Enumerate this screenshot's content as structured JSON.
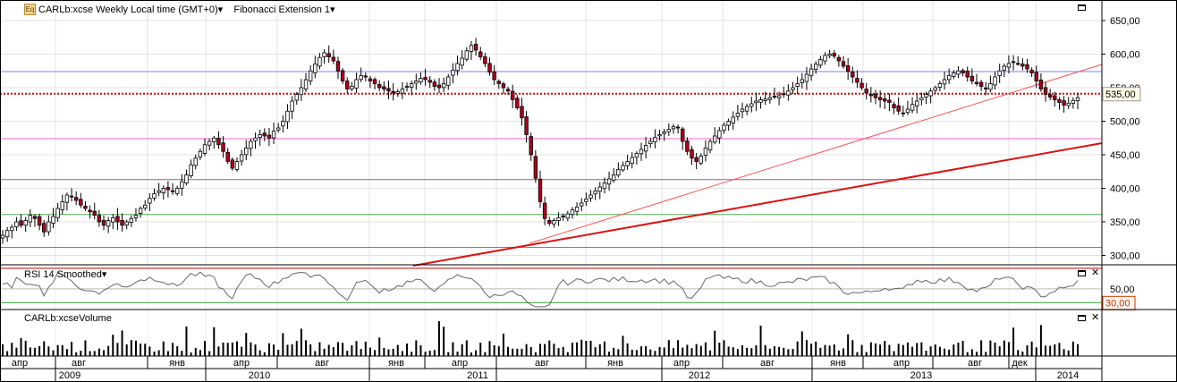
{
  "header": {
    "symbol_title": "CARLb:xcse Weekly Local time (GMT+0)",
    "indicator_title": "Fibonacci Extension 1",
    "dropdown_glyph": "▾",
    "logo_glyph": "Eq"
  },
  "rsi_panel": {
    "title": "RSI 14 Smoothed",
    "level_labels": [
      "50,00"
    ],
    "last_value": "30,00"
  },
  "volume_panel": {
    "title": "CARLb:xcseVolume"
  },
  "buttons": {
    "maximize_glyph": "▭",
    "close_glyph": "✕"
  },
  "colors": {
    "up_candle": "#ffffff",
    "down_candle": "#b0001a",
    "candle_outline": "#000000",
    "fib_blue": "#7f7fff",
    "fib_pink": "#ff66cc",
    "fib_purple": "#a05a8c",
    "fib_green": "#55aa55",
    "fib_gray": "#808080",
    "trend_red": "#dd1111",
    "price_dotted": "#cc0000",
    "rsi_line": "#666666",
    "volume_bars": "#000000"
  },
  "chart_data": [
    {
      "type": "candlestick",
      "timeframe": "Weekly",
      "y_ticks": [
        "650,00",
        "600,00",
        "550,00",
        "500,00",
        "450,00",
        "400,00",
        "350,00",
        "300,00"
      ],
      "ylim": [
        290,
        665
      ],
      "last_price_label": "535,00",
      "x_month_labels": [
        "апр",
        "авг",
        "янв",
        "апр",
        "авг",
        "янв",
        "апр",
        "авг",
        "янв",
        "апр",
        "авг",
        "янв",
        "апр",
        "авг",
        "дек"
      ],
      "x_year_labels": [
        "2009",
        "2010",
        "2011",
        "2012",
        "2013",
        "2014"
      ],
      "close_series": [
        330,
        337,
        342,
        350,
        345,
        352,
        360,
        355,
        345,
        335,
        350,
        358,
        370,
        380,
        390,
        388,
        382,
        375,
        370,
        365,
        360,
        350,
        345,
        352,
        356,
        350,
        345,
        350,
        355,
        360,
        370,
        375,
        385,
        392,
        396,
        400,
        398,
        395,
        400,
        410,
        420,
        435,
        445,
        455,
        465,
        470,
        475,
        465,
        455,
        440,
        430,
        440,
        450,
        460,
        470,
        475,
        480,
        478,
        475,
        485,
        490,
        500,
        515,
        530,
        540,
        550,
        562,
        575,
        585,
        595,
        602,
        596,
        590,
        575,
        560,
        548,
        552,
        562,
        568,
        566,
        560,
        556,
        550,
        548,
        545,
        542,
        544,
        548,
        552,
        556,
        560,
        564,
        562,
        558,
        552,
        550,
        556,
        566,
        576,
        586,
        594,
        605,
        613,
        606,
        596,
        586,
        573,
        562,
        556,
        550,
        545,
        532,
        520,
        505,
        480,
        450,
        415,
        380,
        355,
        348,
        352,
        356,
        358,
        362,
        368,
        372,
        378,
        384,
        390,
        396,
        402,
        408,
        414,
        420,
        428,
        434,
        440,
        446,
        452,
        458,
        464,
        470,
        476,
        480,
        484,
        488,
        492,
        490,
        470,
        455,
        445,
        440,
        448,
        460,
        470,
        478,
        486,
        494,
        500,
        506,
        512,
        518,
        522,
        526,
        530,
        532,
        533,
        535,
        536,
        538,
        540,
        545,
        550,
        556,
        562,
        570,
        578,
        585,
        592,
        598,
        600,
        597,
        590,
        582,
        574,
        566,
        558,
        550,
        542,
        538,
        535,
        532,
        530,
        528,
        520,
        515,
        512,
        518,
        525,
        530,
        535,
        540,
        545,
        550,
        556,
        562,
        568,
        572,
        575,
        572,
        566,
        560,
        556,
        552,
        548,
        556,
        566,
        575,
        582,
        586,
        588,
        586,
        582,
        578,
        572,
        560,
        548,
        540,
        536,
        532,
        528,
        524,
        527,
        531,
        535
      ],
      "fib_levels": [
        574,
        541,
        474,
        413,
        361,
        312
      ],
      "trend_lines": [
        {
          "name": "thick-trend",
          "x1": "2010-08",
          "y1": 283,
          "x2": "2014-02",
          "y2": 463
        },
        {
          "name": "thin-trend",
          "x1": "2011-08",
          "y1": 315,
          "x2": "2014-02",
          "y2": 585
        }
      ]
    },
    {
      "type": "line",
      "name": "RSI 14 Smoothed",
      "ylim": [
        20,
        85
      ],
      "levels": [
        80,
        50,
        30
      ],
      "last_value": 30
    },
    {
      "type": "bar",
      "name": "CARLb:xcseVolume"
    }
  ]
}
